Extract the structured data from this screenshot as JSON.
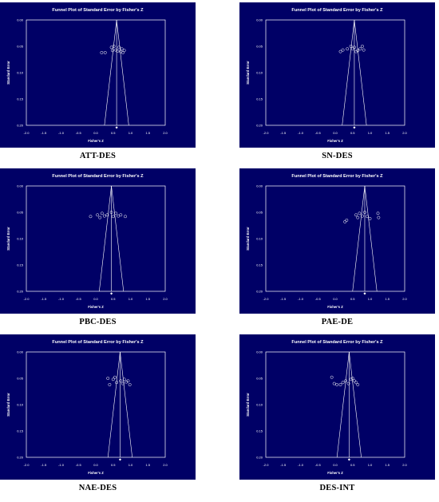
{
  "colors": {
    "background": "#000066",
    "foreground": "#ffffff"
  },
  "chart_data": [
    {
      "type": "scatter",
      "caption": "ATT-DES",
      "title": "Funnel Plot of Standard Error by Fisher's Z",
      "xlabel": "Fisher's Z",
      "ylabel": "Standard Error",
      "xlim": [
        -2.0,
        2.0
      ],
      "ylim": [
        0.0,
        0.2
      ],
      "y_inverted": true,
      "xticks": [
        "-2.0",
        "-1.5",
        "-1.0",
        "-0.5",
        "0.0",
        "0.5",
        "1.0",
        "1.5",
        "2.0"
      ],
      "yticks": [
        "0.00",
        "0.05",
        "0.10",
        "0.15",
        "0.20"
      ],
      "pooled_z": 0.6,
      "funnel_bottom_z": [
        0.25,
        0.95
      ],
      "points": [
        {
          "x": 0.17,
          "y": 0.062
        },
        {
          "x": 0.27,
          "y": 0.062
        },
        {
          "x": 0.45,
          "y": 0.052
        },
        {
          "x": 0.48,
          "y": 0.058
        },
        {
          "x": 0.52,
          "y": 0.05
        },
        {
          "x": 0.58,
          "y": 0.057
        },
        {
          "x": 0.63,
          "y": 0.059
        },
        {
          "x": 0.67,
          "y": 0.052
        },
        {
          "x": 0.72,
          "y": 0.06
        },
        {
          "x": 0.75,
          "y": 0.055
        },
        {
          "x": 0.78,
          "y": 0.062
        },
        {
          "x": 0.82,
          "y": 0.058
        }
      ]
    },
    {
      "type": "scatter",
      "caption": "SN-DES",
      "title": "Funnel Plot of Standard Error by Fisher's Z",
      "xlabel": "Fisher's Z",
      "ylabel": "Standard Error",
      "xlim": [
        -2.0,
        2.0
      ],
      "ylim": [
        0.0,
        0.2
      ],
      "y_inverted": true,
      "xticks": [
        "-2.0",
        "-1.5",
        "-1.0",
        "-0.5",
        "0.0",
        "0.5",
        "1.0",
        "1.5",
        "2.0"
      ],
      "yticks": [
        "0.00",
        "0.05",
        "0.10",
        "0.15",
        "0.20"
      ],
      "pooled_z": 0.55,
      "funnel_bottom_z": [
        0.2,
        0.9
      ],
      "points": [
        {
          "x": 0.15,
          "y": 0.06
        },
        {
          "x": 0.22,
          "y": 0.057
        },
        {
          "x": 0.35,
          "y": 0.055
        },
        {
          "x": 0.45,
          "y": 0.05
        },
        {
          "x": 0.5,
          "y": 0.055
        },
        {
          "x": 0.55,
          "y": 0.052
        },
        {
          "x": 0.6,
          "y": 0.06
        },
        {
          "x": 0.65,
          "y": 0.058
        },
        {
          "x": 0.72,
          "y": 0.055
        },
        {
          "x": 0.78,
          "y": 0.05
        },
        {
          "x": 0.82,
          "y": 0.057
        }
      ]
    },
    {
      "type": "scatter",
      "caption": "PBC-DES",
      "title": "Funnel Plot of Standard Error by Fisher's Z",
      "xlabel": "Fisher's Z",
      "ylabel": "Standard Error",
      "xlim": [
        -2.0,
        2.0
      ],
      "ylim": [
        0.0,
        0.2
      ],
      "y_inverted": true,
      "xticks": [
        "-2.0",
        "-1.5",
        "-1.0",
        "-0.5",
        "0.0",
        "0.5",
        "1.0",
        "1.5",
        "2.0"
      ],
      "yticks": [
        "0.00",
        "0.05",
        "0.10",
        "0.15",
        "0.20"
      ],
      "pooled_z": 0.45,
      "funnel_bottom_z": [
        0.1,
        0.8
      ],
      "points": [
        {
          "x": -0.15,
          "y": 0.058
        },
        {
          "x": 0.05,
          "y": 0.055
        },
        {
          "x": 0.12,
          "y": 0.06
        },
        {
          "x": 0.18,
          "y": 0.052
        },
        {
          "x": 0.25,
          "y": 0.057
        },
        {
          "x": 0.33,
          "y": 0.055
        },
        {
          "x": 0.45,
          "y": 0.05
        },
        {
          "x": 0.5,
          "y": 0.058
        },
        {
          "x": 0.58,
          "y": 0.052
        },
        {
          "x": 0.65,
          "y": 0.057
        },
        {
          "x": 0.72,
          "y": 0.055
        },
        {
          "x": 0.85,
          "y": 0.058
        }
      ]
    },
    {
      "type": "scatter",
      "caption": "PAE-DE",
      "title": "Funnel Plot of Standard Error by Fisher's Z",
      "xlabel": "Fisher's Z",
      "ylabel": "Standard Error",
      "xlim": [
        -2.0,
        2.0
      ],
      "ylim": [
        0.0,
        0.2
      ],
      "y_inverted": true,
      "xticks": [
        "-2.0",
        "-1.5",
        "-1.0",
        "-0.5",
        "0.0",
        "0.5",
        "1.0",
        "1.5",
        "2.0"
      ],
      "yticks": [
        "0.00",
        "0.05",
        "0.10",
        "0.15",
        "0.20"
      ],
      "pooled_z": 0.85,
      "funnel_bottom_z": [
        0.5,
        1.2
      ],
      "points": [
        {
          "x": 0.28,
          "y": 0.068
        },
        {
          "x": 0.33,
          "y": 0.065
        },
        {
          "x": 0.6,
          "y": 0.055
        },
        {
          "x": 0.65,
          "y": 0.06
        },
        {
          "x": 0.7,
          "y": 0.052
        },
        {
          "x": 0.78,
          "y": 0.057
        },
        {
          "x": 0.85,
          "y": 0.05
        },
        {
          "x": 0.92,
          "y": 0.058
        },
        {
          "x": 1.0,
          "y": 0.062
        },
        {
          "x": 1.23,
          "y": 0.052
        },
        {
          "x": 1.25,
          "y": 0.06
        }
      ]
    },
    {
      "type": "scatter",
      "caption": "NAE-DES",
      "title": "Funnel Plot of Standard Error by Fisher's Z",
      "xlabel": "Fisher's Z",
      "ylabel": "Standard Error",
      "xlim": [
        -2.0,
        2.0
      ],
      "ylim": [
        0.0,
        0.2
      ],
      "y_inverted": true,
      "xticks": [
        "-2.0",
        "-1.5",
        "-1.0",
        "-0.5",
        "0.0",
        "0.5",
        "1.0",
        "1.5",
        "2.0"
      ],
      "yticks": [
        "0.00",
        "0.05",
        "0.10",
        "0.15",
        "0.20"
      ],
      "pooled_z": 0.7,
      "funnel_bottom_z": [
        0.35,
        1.05
      ],
      "points": [
        {
          "x": 0.35,
          "y": 0.05
        },
        {
          "x": 0.4,
          "y": 0.062
        },
        {
          "x": 0.5,
          "y": 0.052
        },
        {
          "x": 0.55,
          "y": 0.048
        },
        {
          "x": 0.6,
          "y": 0.058
        },
        {
          "x": 0.72,
          "y": 0.055
        },
        {
          "x": 0.78,
          "y": 0.06
        },
        {
          "x": 0.82,
          "y": 0.052
        },
        {
          "x": 0.88,
          "y": 0.057
        },
        {
          "x": 0.93,
          "y": 0.055
        },
        {
          "x": 0.98,
          "y": 0.062
        }
      ]
    },
    {
      "type": "scatter",
      "caption": "DES-INT",
      "title": "Funnel Plot of Standard Error by Fisher's Z",
      "xlabel": "Fisher's Z",
      "ylabel": "Standard Error",
      "xlim": [
        -2.0,
        2.0
      ],
      "ylim": [
        0.0,
        0.2
      ],
      "y_inverted": true,
      "xticks": [
        "-2.0",
        "-1.5",
        "-1.0",
        "-0.5",
        "0.0",
        "0.5",
        "1.0",
        "1.5",
        "2.0"
      ],
      "yticks": [
        "0.00",
        "0.05",
        "0.10",
        "0.15",
        "0.20"
      ],
      "pooled_z": 0.4,
      "funnel_bottom_z": [
        0.05,
        0.75
      ],
      "points": [
        {
          "x": -0.1,
          "y": 0.048
        },
        {
          "x": -0.03,
          "y": 0.06
        },
        {
          "x": 0.05,
          "y": 0.062
        },
        {
          "x": 0.15,
          "y": 0.062
        },
        {
          "x": 0.22,
          "y": 0.058
        },
        {
          "x": 0.3,
          "y": 0.055
        },
        {
          "x": 0.38,
          "y": 0.06
        },
        {
          "x": 0.45,
          "y": 0.052
        },
        {
          "x": 0.5,
          "y": 0.05
        },
        {
          "x": 0.55,
          "y": 0.055
        },
        {
          "x": 0.6,
          "y": 0.058
        },
        {
          "x": 0.65,
          "y": 0.062
        }
      ]
    }
  ]
}
